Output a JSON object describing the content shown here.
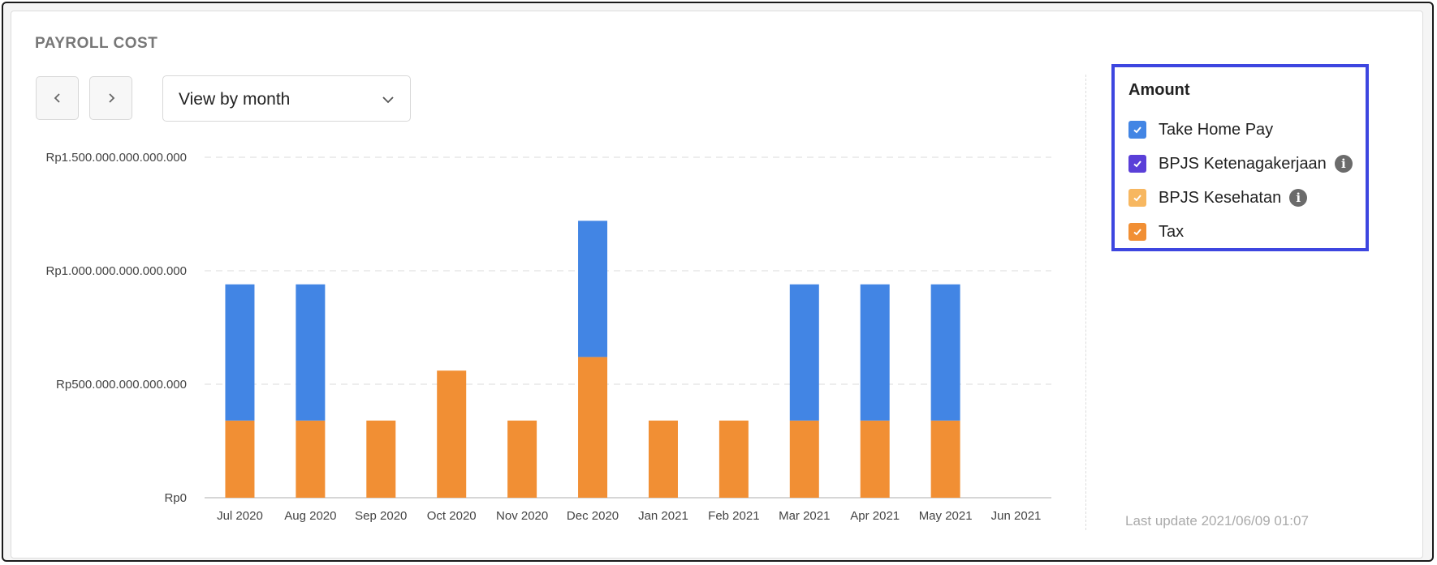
{
  "card": {
    "title": "PAYROLL COST",
    "prev_icon": "chevron-left-icon",
    "next_icon": "chevron-right-icon",
    "view_select": {
      "value": "View by month",
      "icon": "chevron-down-icon"
    }
  },
  "legend": {
    "title": "Amount",
    "items": [
      {
        "label": "Take Home Pay",
        "color": "#4285e4",
        "checked": true,
        "info": false
      },
      {
        "label": "BPJS Ketenagakerjaan",
        "color": "#5a3fd8",
        "checked": true,
        "info": true
      },
      {
        "label": "BPJS Kesehatan",
        "color": "#f7b760",
        "checked": true,
        "info": true
      },
      {
        "label": "Tax",
        "color": "#f18f34",
        "checked": true,
        "info": false
      }
    ]
  },
  "last_update": "Last update 2021/06/09 01:07",
  "chart_data": {
    "type": "bar",
    "stacked": true,
    "categories": [
      "Jul 2020",
      "Aug 2020",
      "Sep 2020",
      "Oct 2020",
      "Nov 2020",
      "Dec 2020",
      "Jan 2021",
      "Feb 2021",
      "Mar 2021",
      "Apr 2021",
      "May 2021",
      "Jun 2021"
    ],
    "series": [
      {
        "name": "Tax",
        "color": "#f18f34",
        "values": [
          340000000000000,
          340000000000000,
          340000000000000,
          560000000000000,
          340000000000000,
          620000000000000,
          340000000000000,
          340000000000000,
          340000000000000,
          340000000000000,
          340000000000000,
          0
        ]
      },
      {
        "name": "Take Home Pay",
        "color": "#4285e4",
        "values": [
          600000000000000,
          600000000000000,
          0,
          0,
          0,
          600000000000000,
          0,
          0,
          600000000000000,
          600000000000000,
          600000000000000,
          0
        ]
      }
    ],
    "ylim": [
      0,
      1500000000000000
    ],
    "yticks": [
      {
        "value": 0,
        "label": "Rp0"
      },
      {
        "value": 500000000000000,
        "label": "Rp500.000.000.000.000"
      },
      {
        "value": 1000000000000000,
        "label": "Rp1.000.000.000.000.000"
      },
      {
        "value": 1500000000000000,
        "label": "Rp1.500.000.000.000.000"
      }
    ],
    "grid": true,
    "legend_position": "right"
  }
}
